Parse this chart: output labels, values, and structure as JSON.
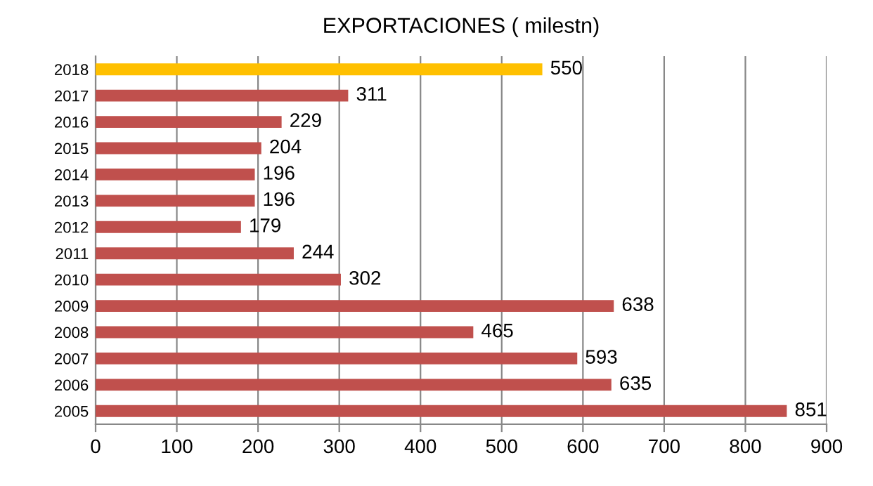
{
  "chart_data": {
    "type": "bar",
    "orientation": "horizontal",
    "title": "EXPORTACIONES ( milestn)",
    "categories": [
      "2018",
      "2017",
      "2016",
      "2015",
      "2014",
      "2013",
      "2012",
      "2011",
      "2010",
      "2009",
      "2008",
      "2007",
      "2006",
      "2005"
    ],
    "values": [
      550,
      311,
      229,
      204,
      196,
      196,
      179,
      244,
      302,
      638,
      465,
      593,
      635,
      851
    ],
    "colors": [
      "#ffc000",
      "#c0504d",
      "#c0504d",
      "#c0504d",
      "#c0504d",
      "#c0504d",
      "#c0504d",
      "#c0504d",
      "#c0504d",
      "#c0504d",
      "#c0504d",
      "#c0504d",
      "#c0504d",
      "#c0504d"
    ],
    "xlim": [
      0,
      900
    ],
    "xticks": [
      0,
      100,
      200,
      300,
      400,
      500,
      600,
      700,
      800,
      900
    ],
    "grid": "x",
    "data_labels": true
  }
}
